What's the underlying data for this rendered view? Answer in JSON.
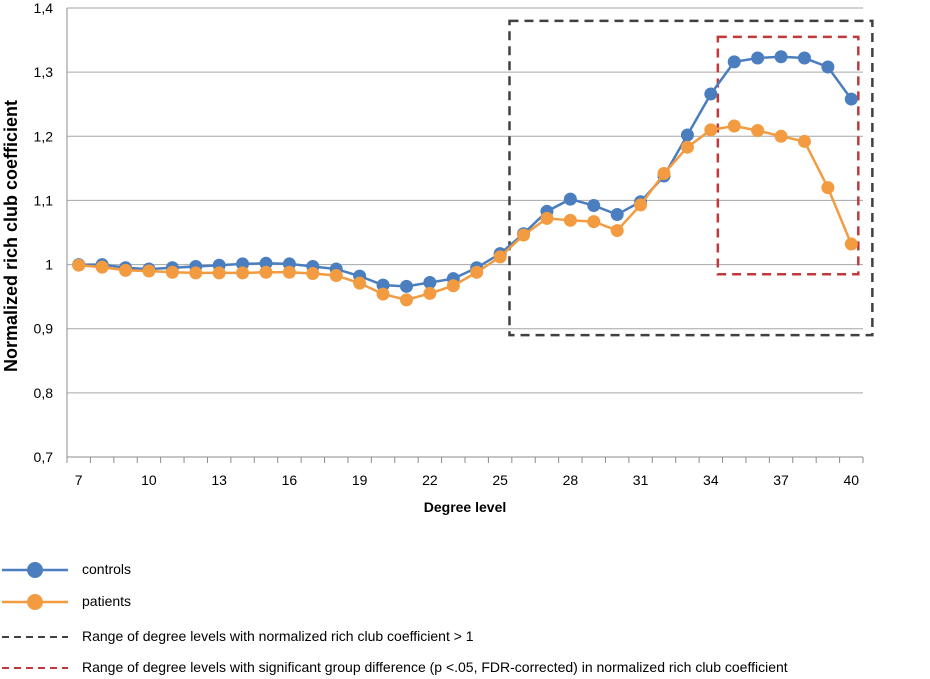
{
  "chart_data": {
    "type": "line",
    "xlabel": "Degree level",
    "ylabel": "Normalized rich club coefficient",
    "x": [
      7,
      8,
      9,
      10,
      11,
      12,
      13,
      14,
      15,
      16,
      17,
      18,
      19,
      20,
      21,
      22,
      23,
      24,
      25,
      26,
      27,
      28,
      29,
      30,
      31,
      32,
      33,
      34,
      35,
      36,
      37,
      38,
      39,
      40
    ],
    "x_tick_labels": [
      "7",
      "10",
      "13",
      "16",
      "19",
      "22",
      "25",
      "28",
      "31",
      "34",
      "37",
      "40"
    ],
    "x_tick_values": [
      7,
      10,
      13,
      16,
      19,
      22,
      25,
      28,
      31,
      34,
      37,
      40
    ],
    "ylim": [
      0.7,
      1.4
    ],
    "y_ticks": [
      0.7,
      0.8,
      0.9,
      1.0,
      1.1,
      1.2,
      1.3,
      1.4
    ],
    "y_tick_labels": [
      "0,7",
      "0,8",
      "0,9",
      "1",
      "1,1",
      "1,2",
      "1,3",
      "1,4"
    ],
    "grid": "horizontal",
    "legend_position": "bottom",
    "series": [
      {
        "name": "controls",
        "color": "#4a7ebf",
        "values": [
          1.0,
          1.0,
          0.995,
          0.993,
          0.995,
          0.997,
          0.999,
          1.001,
          1.002,
          1.001,
          0.997,
          0.993,
          0.982,
          0.968,
          0.966,
          0.972,
          0.978,
          0.995,
          1.017,
          1.048,
          1.083,
          1.102,
          1.092,
          1.078,
          1.098,
          1.138,
          1.202,
          1.266,
          1.316,
          1.322,
          1.324,
          1.322,
          1.308,
          1.258
        ]
      },
      {
        "name": "patients",
        "color": "#f39b40",
        "values": [
          0.999,
          0.996,
          0.991,
          0.99,
          0.988,
          0.987,
          0.987,
          0.987,
          0.988,
          0.988,
          0.986,
          0.983,
          0.971,
          0.954,
          0.945,
          0.955,
          0.967,
          0.988,
          1.012,
          1.046,
          1.072,
          1.069,
          1.067,
          1.053,
          1.093,
          1.142,
          1.183,
          1.21,
          1.216,
          1.209,
          1.2,
          1.192,
          1.12,
          1.032
        ]
      }
    ],
    "highlight_boxes": [
      {
        "label": "Range of degree levels with normalized rich club coefficient > 1",
        "x_from": 25.4,
        "x_to": 40.9,
        "y_from": 0.89,
        "y_to": 1.38,
        "color": "#404040"
      },
      {
        "label": "Range of degree levels with significant group difference (p <.05, FDR-corrected) in normalized rich club coefficient",
        "x_from": 34.3,
        "x_to": 40.3,
        "y_from": 0.985,
        "y_to": 1.355,
        "color": "#c0393b"
      }
    ]
  }
}
